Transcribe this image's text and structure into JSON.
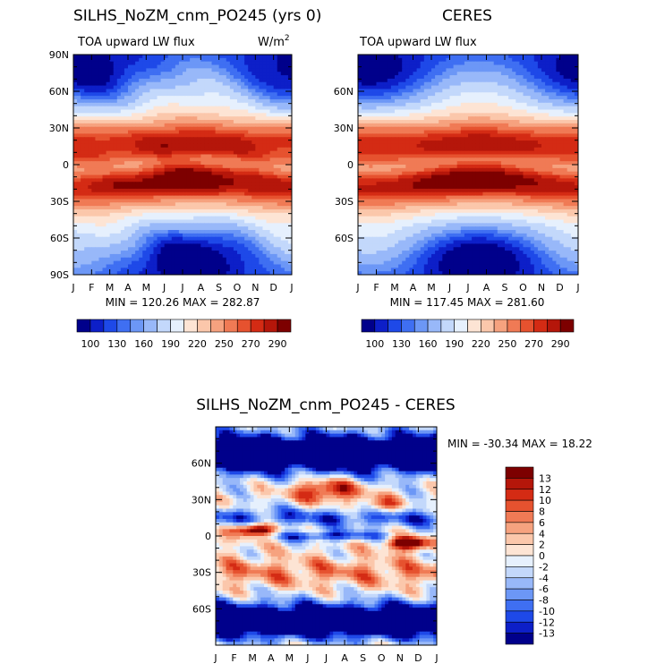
{
  "chart_data": [
    {
      "type": "heatmap",
      "title": "SILHS_NoZM_cnm_PO245 (yrs 0)",
      "subtitle": "TOA upward LW flux",
      "units_label": "W/m",
      "units_exponent": "2",
      "stats_text": "MIN = 120.26  MAX = 282.87",
      "x_ticks": [
        "J",
        "F",
        "M",
        "A",
        "M",
        "J",
        "J",
        "A",
        "S",
        "O",
        "N",
        "D",
        "J"
      ],
      "y_ticks": [
        "90N",
        "60N",
        "30N",
        "0",
        "30S",
        "60S",
        "90S"
      ],
      "colorbar_labels": [
        "100",
        "130",
        "160",
        "190",
        "220",
        "250",
        "270",
        "290"
      ],
      "colors": [
        "#00008b",
        "#0d1fc8",
        "#1e49e8",
        "#3f6ff2",
        "#6c97f6",
        "#98b8f9",
        "#c3d8fb",
        "#e6f0fd",
        "#fde4d4",
        "#fbc7ab",
        "#f6a27f",
        "#f07a55",
        "#e6522f",
        "#d42b14",
        "#b5160a",
        "#7d0000"
      ]
    },
    {
      "type": "heatmap",
      "title": "CERES",
      "subtitle": "TOA upward LW flux",
      "stats_text": "MIN = 117.45  MAX = 281.60",
      "x_ticks": [
        "J",
        "F",
        "M",
        "A",
        "M",
        "J",
        "J",
        "A",
        "S",
        "O",
        "N",
        "D",
        "J"
      ],
      "y_ticks": [
        "60N",
        "30N",
        "0",
        "30S",
        "60S"
      ],
      "colorbar_labels": [
        "100",
        "130",
        "160",
        "190",
        "220",
        "250",
        "270",
        "290"
      ]
    },
    {
      "type": "heatmap",
      "title": "SILHS_NoZM_cnm_PO245 - CERES",
      "stats_text": "MIN = -30.34  MAX =  18.22",
      "x_ticks": [
        "J",
        "F",
        "M",
        "A",
        "M",
        "J",
        "J",
        "A",
        "S",
        "O",
        "N",
        "D",
        "J"
      ],
      "y_ticks": [
        "60N",
        "30N",
        "0",
        "30S",
        "60S"
      ],
      "colorbar_labels": [
        "13",
        "12",
        "10",
        "8",
        "6",
        "4",
        "2",
        "0",
        "-2",
        "-4",
        "-6",
        "-8",
        "-10",
        "-12",
        "-13"
      ],
      "colors": [
        "#7d0000",
        "#b5160a",
        "#d42b14",
        "#e6522f",
        "#f07a55",
        "#f6a27f",
        "#fbc7ab",
        "#fde4d4",
        "#e6f0fd",
        "#c3d8fb",
        "#98b8f9",
        "#6c97f6",
        "#3f6ff2",
        "#1e49e8",
        "#0d1fc8",
        "#00008b"
      ]
    }
  ]
}
